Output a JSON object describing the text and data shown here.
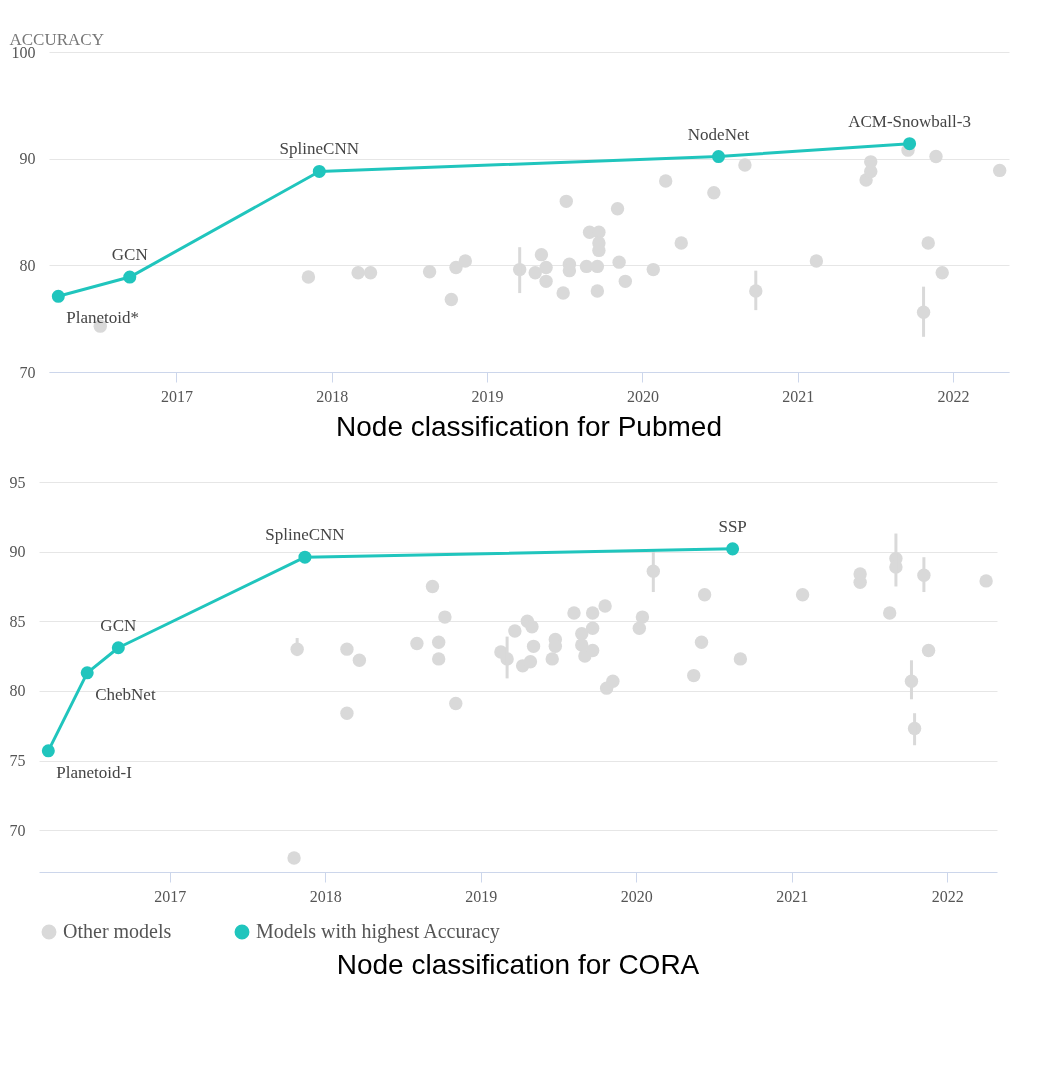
{
  "chart_data": [
    {
      "type": "line",
      "title": "Node classification for Pubmed",
      "ylabel": "ACCURACY",
      "xlim": [
        2016.18,
        2022.36
      ],
      "xticks": [
        2017,
        2018,
        2019,
        2020,
        2021,
        2022
      ],
      "ylim": [
        70,
        100
      ],
      "yticks": [
        70,
        80,
        90,
        100
      ],
      "grid": "y",
      "marker": "circle",
      "series": [
        {
          "type": "scatter",
          "color": "#d9d9d9",
          "x": [
            2016.51,
            2017.85,
            2018.17,
            2018.25,
            2018.63,
            2018.77,
            2018.8,
            2018.86,
            2019.21,
            2019.35,
            2019.31,
            2019.38,
            2019.38,
            2019.49,
            2019.51,
            2019.53,
            2019.53,
            2019.64,
            2019.66,
            2019.72,
            2019.72,
            2019.72,
            2019.71,
            2019.71,
            2019.84,
            2019.85,
            2019.89,
            2020.07,
            2020.15,
            2020.25,
            2020.46,
            2020.66,
            2020.73,
            2021.12,
            2021.44,
            2021.47,
            2021.47,
            2021.71,
            2021.84,
            2021.81,
            2021.89,
            2021.93,
            2022.3
          ],
          "values": [
            74.3,
            78.9,
            79.3,
            79.3,
            79.4,
            76.8,
            79.8,
            80.4,
            79.6,
            81.0,
            79.3,
            79.8,
            78.5,
            77.4,
            86.0,
            80.1,
            79.5,
            79.9,
            83.1,
            83.1,
            82.1,
            81.4,
            79.9,
            77.6,
            85.3,
            80.3,
            78.5,
            79.6,
            87.9,
            82.1,
            86.8,
            89.4,
            77.6,
            80.4,
            88.0,
            89.7,
            88.8,
            90.8,
            82.1,
            75.6,
            90.2,
            79.3,
            88.9
          ],
          "errors": [
            null,
            null,
            null,
            null,
            null,
            null,
            null,
            null,
            [
              77.4,
              81.7
            ],
            null,
            null,
            null,
            null,
            null,
            null,
            null,
            null,
            null,
            null,
            null,
            null,
            null,
            null,
            null,
            null,
            null,
            null,
            null,
            null,
            null,
            null,
            null,
            [
              75.8,
              79.5
            ],
            null,
            null,
            null,
            null,
            null,
            null,
            [
              73.3,
              78.0
            ],
            null,
            null,
            null
          ]
        },
        {
          "type": "line",
          "color": "#20c5bd",
          "x": [
            2016.24,
            2016.7,
            2017.92,
            2020.49,
            2021.72
          ],
          "values": [
            77.1,
            78.9,
            88.8,
            90.2,
            91.4
          ]
        }
      ],
      "annotations": [
        {
          "text": "Planetoid*",
          "x": 2016.24,
          "y": 77.1
        },
        {
          "text": "GCN",
          "x": 2016.7,
          "y": 78.9
        },
        {
          "text": "SplineCNN",
          "x": 2017.92,
          "y": 88.8
        },
        {
          "text": "NodeNet",
          "x": 2020.49,
          "y": 90.2
        },
        {
          "text": "ACM-Snowball-3",
          "x": 2021.72,
          "y": 91.4
        }
      ]
    },
    {
      "type": "line",
      "title": "Node classification for CORA",
      "xlim": [
        2016.16,
        2022.32
      ],
      "xticks": [
        2017,
        2018,
        2019,
        2020,
        2021,
        2022
      ],
      "ylim": [
        67,
        95
      ],
      "yticks": [
        70,
        75,
        80,
        85,
        90,
        95
      ],
      "grid": "y",
      "marker": "circle",
      "legend": "bottom",
      "series": [
        {
          "type": "scatter",
          "name": "Other models",
          "color": "#d9d9d9",
          "x": [
            2017.82,
            2017.8,
            2018.14,
            2018.22,
            2018.14,
            2018.59,
            2018.69,
            2018.73,
            2018.73,
            2018.77,
            2018.84,
            2019.13,
            2019.17,
            2019.22,
            2019.3,
            2019.33,
            2019.27,
            2019.32,
            2019.34,
            2019.46,
            2019.48,
            2019.48,
            2019.6,
            2019.65,
            2019.65,
            2019.67,
            2019.72,
            2019.72,
            2019.72,
            2019.8,
            2019.81,
            2019.85,
            2020.02,
            2020.04,
            2020.11,
            2020.37,
            2020.42,
            2020.44,
            2020.67,
            2021.07,
            2021.44,
            2021.44,
            2021.63,
            2021.67,
            2021.67,
            2021.85,
            2021.77,
            2021.79,
            2021.88,
            2022.25
          ],
          "values": [
            83.0,
            68.0,
            83.0,
            82.2,
            78.4,
            83.4,
            87.5,
            83.5,
            82.3,
            85.3,
            79.1,
            82.8,
            82.3,
            84.3,
            85.0,
            84.6,
            81.8,
            82.1,
            83.2,
            82.3,
            83.7,
            83.2,
            85.6,
            84.1,
            83.3,
            82.5,
            85.6,
            84.5,
            82.9,
            86.1,
            80.2,
            80.7,
            84.5,
            85.3,
            88.6,
            81.1,
            83.5,
            86.9,
            82.3,
            86.9,
            88.4,
            87.8,
            85.6,
            89.5,
            88.9,
            88.3,
            80.7,
            77.3,
            82.9,
            87.9
          ],
          "errors": [
            [
              82.5,
              83.8
            ],
            null,
            null,
            null,
            null,
            null,
            null,
            null,
            null,
            null,
            null,
            null,
            [
              80.9,
              83.9
            ],
            null,
            null,
            null,
            null,
            null,
            null,
            null,
            null,
            null,
            null,
            null,
            null,
            null,
            null,
            null,
            null,
            null,
            null,
            null,
            null,
            null,
            [
              87.1,
              90.1
            ],
            null,
            null,
            null,
            null,
            null,
            null,
            null,
            null,
            null,
            [
              87.5,
              91.3
            ],
            [
              87.1,
              89.6
            ],
            [
              79.4,
              82.2
            ],
            [
              76.1,
              78.4
            ],
            null,
            null
          ]
        },
        {
          "type": "line",
          "name": "Models with highest Accuracy",
          "color": "#20c5bd",
          "x": [
            2016.22,
            2016.47,
            2016.67,
            2017.87,
            2020.62
          ],
          "values": [
            75.7,
            81.3,
            83.1,
            89.6,
            90.2
          ]
        }
      ],
      "annotations": [
        {
          "text": "Planetoid-I",
          "x": 2016.22,
          "y": 75.7
        },
        {
          "text": "ChebNet",
          "x": 2016.47,
          "y": 81.3
        },
        {
          "text": "GCN",
          "x": 2016.67,
          "y": 83.1
        },
        {
          "text": "SplineCNN",
          "x": 2017.87,
          "y": 89.6
        },
        {
          "text": "SSP",
          "x": 2020.62,
          "y": 90.2
        }
      ]
    }
  ]
}
